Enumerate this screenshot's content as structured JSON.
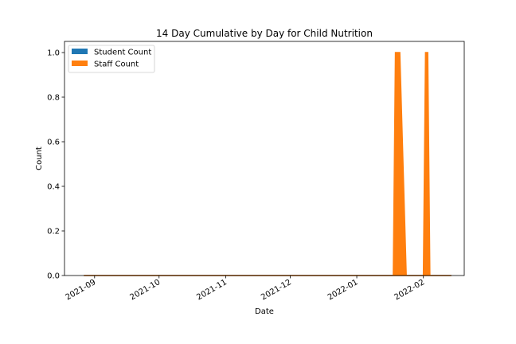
{
  "chart_data": {
    "type": "area",
    "title": "14 Day Cumulative by Day for Child Nutrition",
    "xlabel": "Date",
    "ylabel": "Count",
    "x_axis_type": "date",
    "xlim": [
      "2021-08-18",
      "2022-02-20"
    ],
    "ylim": [
      0,
      1.05
    ],
    "x_ticks": [
      "2021-09-01",
      "2021-10-01",
      "2021-11-01",
      "2021-12-01",
      "2022-01-01",
      "2022-02-01"
    ],
    "x_tick_labels": [
      "2021-09",
      "2021-10",
      "2021-11",
      "2021-12",
      "2022-01",
      "2022-02"
    ],
    "y_ticks": [
      0.0,
      0.2,
      0.4,
      0.6,
      0.8,
      1.0
    ],
    "y_tick_labels": [
      "0.0",
      "0.2",
      "0.4",
      "0.6",
      "0.8",
      "1.0"
    ],
    "stacked": true,
    "grid": false,
    "legend_position": "top-left",
    "series": [
      {
        "name": "Student Count",
        "color": "#1f77b4",
        "points": [
          {
            "x": "2021-08-27",
            "y": 0
          },
          {
            "x": "2022-02-14",
            "y": 0
          }
        ]
      },
      {
        "name": "Staff Count",
        "color": "#ff7f0e",
        "points": [
          {
            "x": "2021-08-27",
            "y": 0
          },
          {
            "x": "2022-01-18",
            "y": 0
          },
          {
            "x": "2022-01-19",
            "y": 1
          },
          {
            "x": "2022-01-21",
            "y": 1
          },
          {
            "x": "2022-01-24",
            "y": 0
          },
          {
            "x": "2022-02-01",
            "y": 0
          },
          {
            "x": "2022-02-02",
            "y": 1
          },
          {
            "x": "2022-02-03",
            "y": 1
          },
          {
            "x": "2022-02-04",
            "y": 0
          },
          {
            "x": "2022-02-14",
            "y": 0
          }
        ]
      }
    ]
  }
}
